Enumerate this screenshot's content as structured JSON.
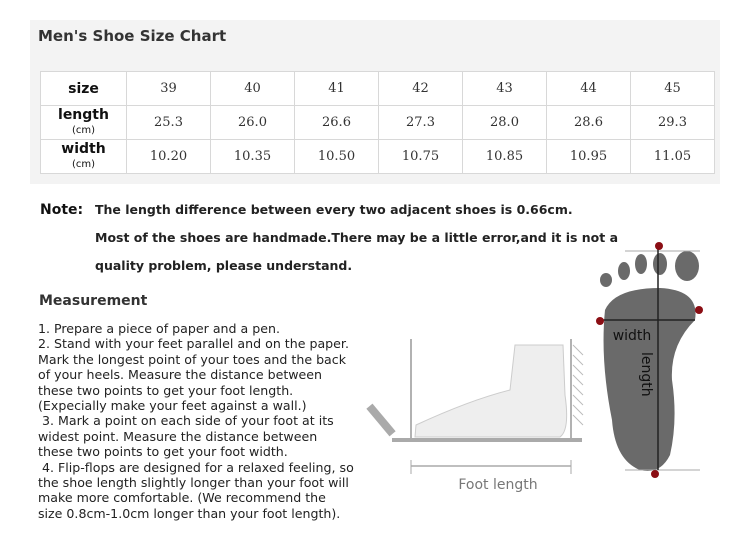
{
  "title": "Men's Shoe Size Chart",
  "table": {
    "rows": [
      {
        "label": "size",
        "unit": "",
        "values": [
          "39",
          "40",
          "41",
          "42",
          "43",
          "44",
          "45"
        ]
      },
      {
        "label": "length",
        "unit": "(cm)",
        "values": [
          "25.3",
          "26.0",
          "26.6",
          "27.3",
          "28.0",
          "28.6",
          "29.3"
        ]
      },
      {
        "label": "width",
        "unit": "(cm)",
        "values": [
          "10.20",
          "10.35",
          "10.50",
          "10.75",
          "10.85",
          "10.95",
          "11.05"
        ]
      }
    ]
  },
  "note": {
    "label": "Note:",
    "lines": [
      "The length difference between every two adjacent shoes is 0.66cm.",
      "Most of the shoes are handmade.There may be a little error,and it is not a",
      "quality problem, please understand."
    ]
  },
  "measurement": {
    "title": "Measurement",
    "text": "1. Prepare a piece of paper and a pen.\n2. Stand with your feet parallel and on the paper.\nMark the longest point of your toes and the back\nof your heels. Measure the distance between\nthese two points to get your foot length.\n(Expecially make your feet against a wall.)\n 3. Mark a point on each side of your foot at its\nwidest point. Measure the distance between\nthese two points to get your foot width.\n 4. Flip-flops are designed for a relaxed feeling, so\nthe shoe length slightly longer than your foot will\nmake more comfortable. (We recommend the\nsize 0.8cm-1.0cm longer than your foot length)."
  },
  "diagram": {
    "foot_length_label": "Foot length",
    "width_label": "width",
    "length_label": "length",
    "marker_color": "#8b0e14",
    "foot_color": "#6a6a6a"
  }
}
